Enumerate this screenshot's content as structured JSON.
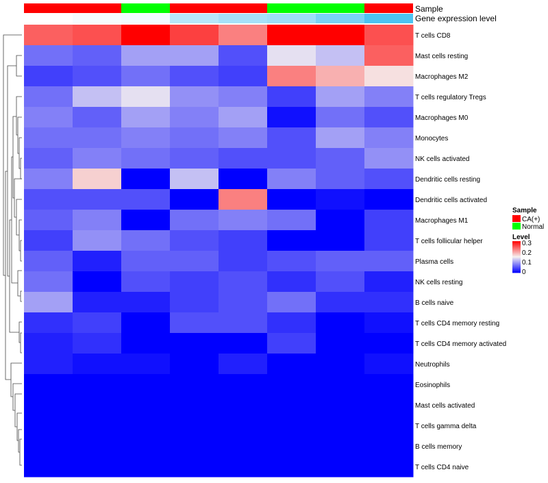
{
  "chart_data": {
    "type": "heatmap",
    "title": "",
    "annotations": [
      {
        "name": "Sample",
        "categories": [
          "CA(+)",
          "CA(+)",
          "Normal",
          "CA(+)",
          "CA(+)",
          "Normal",
          "Normal",
          "CA(+)"
        ]
      },
      {
        "name": "Gene expression level",
        "values": [
          0.0,
          0.02,
          0.03,
          0.16,
          0.2,
          0.22,
          0.3,
          0.4
        ]
      }
    ],
    "rows": [
      "T cells CD8",
      "Mast cells resting",
      "Macrophages M2",
      "T cells regulatory  Tregs",
      "Macrophages M0",
      "Monocytes",
      "NK cells activated",
      "Dendritic cells resting",
      "Dendritic cells activated",
      "Macrophages M1",
      "T cells follicular helper",
      "Plasma cells",
      "NK cells resting",
      "B cells naive",
      "T cells CD4 memory resting",
      "T cells CD4 memory activated",
      "Neutrophils",
      "Eosinophils",
      "Mast cells activated",
      "T cells gamma delta",
      "B cells memory",
      "T cells CD4 naive"
    ],
    "values": [
      [
        0.24,
        0.25,
        0.3,
        0.26,
        0.22,
        0.3,
        0.3,
        0.25
      ],
      [
        0.07,
        0.06,
        0.1,
        0.1,
        0.05,
        0.14,
        0.12,
        0.24
      ],
      [
        0.04,
        0.05,
        0.07,
        0.05,
        0.04,
        0.22,
        0.19,
        0.16
      ],
      [
        0.07,
        0.12,
        0.14,
        0.09,
        0.08,
        0.04,
        0.1,
        0.08
      ],
      [
        0.08,
        0.06,
        0.1,
        0.08,
        0.1,
        0.01,
        0.07,
        0.05
      ],
      [
        0.07,
        0.07,
        0.08,
        0.07,
        0.08,
        0.05,
        0.1,
        0.08
      ],
      [
        0.06,
        0.08,
        0.07,
        0.06,
        0.05,
        0.05,
        0.06,
        0.09
      ],
      [
        0.08,
        0.17,
        0.0,
        0.12,
        0.0,
        0.08,
        0.06,
        0.05
      ],
      [
        0.05,
        0.05,
        0.05,
        0.0,
        0.22,
        0.0,
        0.01,
        0.0
      ],
      [
        0.06,
        0.08,
        0.0,
        0.07,
        0.08,
        0.07,
        0.0,
        0.04
      ],
      [
        0.04,
        0.09,
        0.07,
        0.05,
        0.04,
        0.0,
        0.0,
        0.04
      ],
      [
        0.06,
        0.02,
        0.06,
        0.06,
        0.04,
        0.05,
        0.06,
        0.06
      ],
      [
        0.07,
        0.0,
        0.05,
        0.04,
        0.05,
        0.03,
        0.05,
        0.02
      ],
      [
        0.1,
        0.02,
        0.02,
        0.04,
        0.05,
        0.07,
        0.03,
        0.03
      ],
      [
        0.03,
        0.04,
        0.0,
        0.05,
        0.05,
        0.03,
        0.0,
        0.01
      ],
      [
        0.02,
        0.03,
        0.0,
        0.0,
        0.0,
        0.04,
        0.0,
        0.0
      ],
      [
        0.02,
        0.01,
        0.01,
        0.0,
        0.02,
        0.0,
        0.0,
        0.01
      ],
      [
        0.0,
        0.0,
        0.0,
        0.0,
        0.0,
        0.0,
        0.0,
        0.0
      ],
      [
        0.0,
        0.0,
        0.0,
        0.0,
        0.0,
        0.0,
        0.0,
        0.0
      ],
      [
        0.0,
        0.0,
        0.0,
        0.0,
        0.0,
        0.0,
        0.0,
        0.0
      ],
      [
        0.0,
        0.0,
        0.0,
        0.0,
        0.0,
        0.0,
        0.0,
        0.0
      ],
      [
        0.0,
        0.0,
        0.0,
        0.0,
        0.0,
        0.0,
        0.0,
        0.0
      ]
    ],
    "color_scale": {
      "min": 0,
      "max": 0.3,
      "low_color": "#0000ff",
      "mid_color": "#f5f0f0",
      "high_color": "#ff0000",
      "ticks": [
        "0.3",
        "0.2",
        "0.1",
        "0"
      ]
    },
    "legends": {
      "sample": {
        "title": "Sample",
        "entries": [
          {
            "label": "CA(+)",
            "color": "#ff0000"
          },
          {
            "label": "Normal",
            "color": "#00ff00"
          }
        ]
      },
      "level": {
        "title": "Level"
      },
      "placement": "right"
    },
    "annotation_colors": {
      "expr_low": "#ffffff",
      "expr_high": "#4cc3f2"
    },
    "row_dendrogram": true,
    "grid": false
  }
}
